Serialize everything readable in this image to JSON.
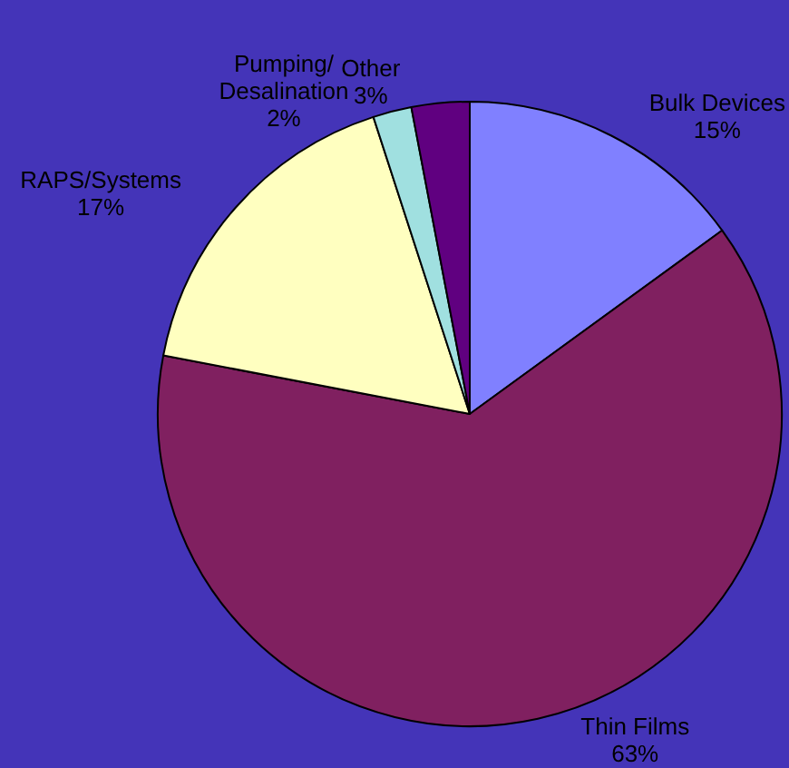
{
  "chart_data": {
    "type": "pie",
    "categories": [
      "Bulk Devices",
      "Thin Films",
      "RAPS/Systems",
      "Pumping/\nDesalination",
      "Other"
    ],
    "values": [
      15,
      63,
      17,
      2,
      3
    ],
    "value_labels": [
      "15%",
      "63%",
      "17%",
      "2%",
      "3%"
    ],
    "colors": [
      "#8080ff",
      "#802060",
      "#ffffc0",
      "#a0e0e0",
      "#600080"
    ],
    "legend": false
  }
}
